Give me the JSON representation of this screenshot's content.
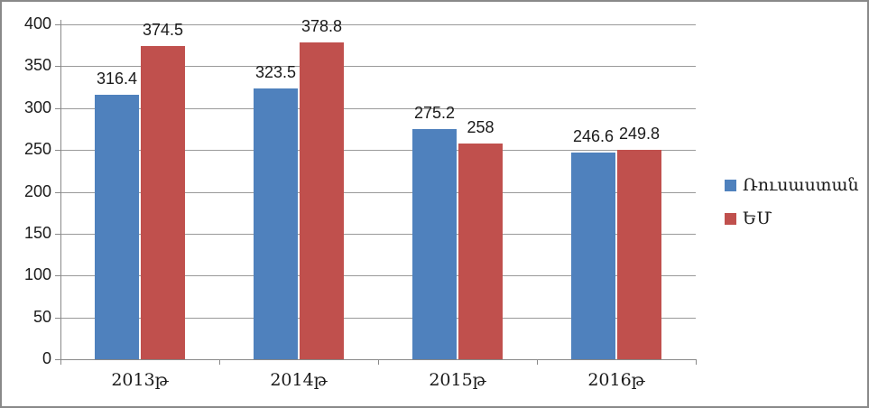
{
  "chart_data": {
    "type": "bar",
    "title": "",
    "xlabel": "",
    "ylabel": "",
    "categories": [
      "2013թ",
      "2014թ",
      "2015թ",
      "2016թ"
    ],
    "series": [
      {
        "name": "Ռուսաստան",
        "color": "#4F81BD",
        "values": [
          316.4,
          323.5,
          275.2,
          246.6
        ]
      },
      {
        "name": "ԵՄ",
        "color": "#C0504D",
        "values": [
          374.5,
          378.8,
          258,
          249.8
        ]
      }
    ],
    "ylim": [
      0,
      400
    ],
    "yticks": [
      0,
      50,
      100,
      150,
      200,
      250,
      300,
      350,
      400
    ],
    "grid": true,
    "legend_position": "right",
    "data_labels": true
  },
  "colors": {
    "series1": "#4F81BD",
    "series2": "#C0504D",
    "gridline": "#9a9a9a",
    "border": "#898989",
    "text": "#1a1a1a"
  }
}
